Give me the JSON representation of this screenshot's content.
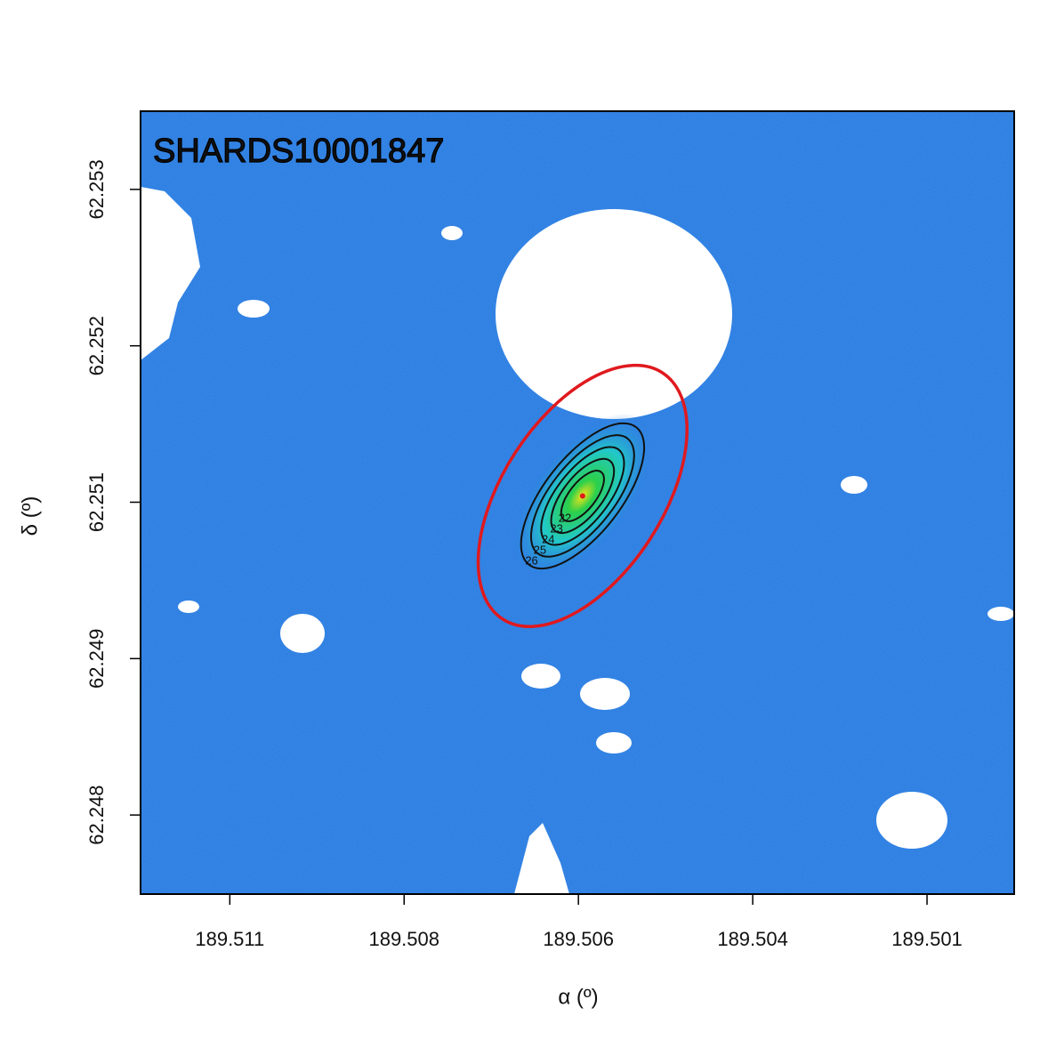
{
  "chart_data": {
    "type": "image",
    "title": "SHARDS10001847",
    "xlabel": "α (º)",
    "ylabel": "δ (º)",
    "xlim": [
      189.51228,
      189.49975
    ],
    "ylim": [
      62.247368,
      62.253625
    ],
    "xticks": [
      {
        "value": 189.511,
        "label": "189.511"
      },
      {
        "value": 189.5085,
        "label": "189.508"
      },
      {
        "value": 189.506,
        "label": "189.506"
      },
      {
        "value": 189.5035,
        "label": "189.504"
      },
      {
        "value": 189.501,
        "label": "189.501"
      }
    ],
    "yticks": [
      {
        "value": 62.253,
        "label": "62.253"
      },
      {
        "value": 62.25175,
        "label": "62.252"
      },
      {
        "value": 62.2505,
        "label": "62.251"
      },
      {
        "value": 62.24925,
        "label": "62.249"
      },
      {
        "value": 62.248,
        "label": "62.248"
      }
    ],
    "source": {
      "x": 189.50594,
      "y": 62.25055,
      "color": "#e0191e"
    },
    "contour_levels": [
      22,
      23,
      24,
      25,
      26
    ]
  }
}
